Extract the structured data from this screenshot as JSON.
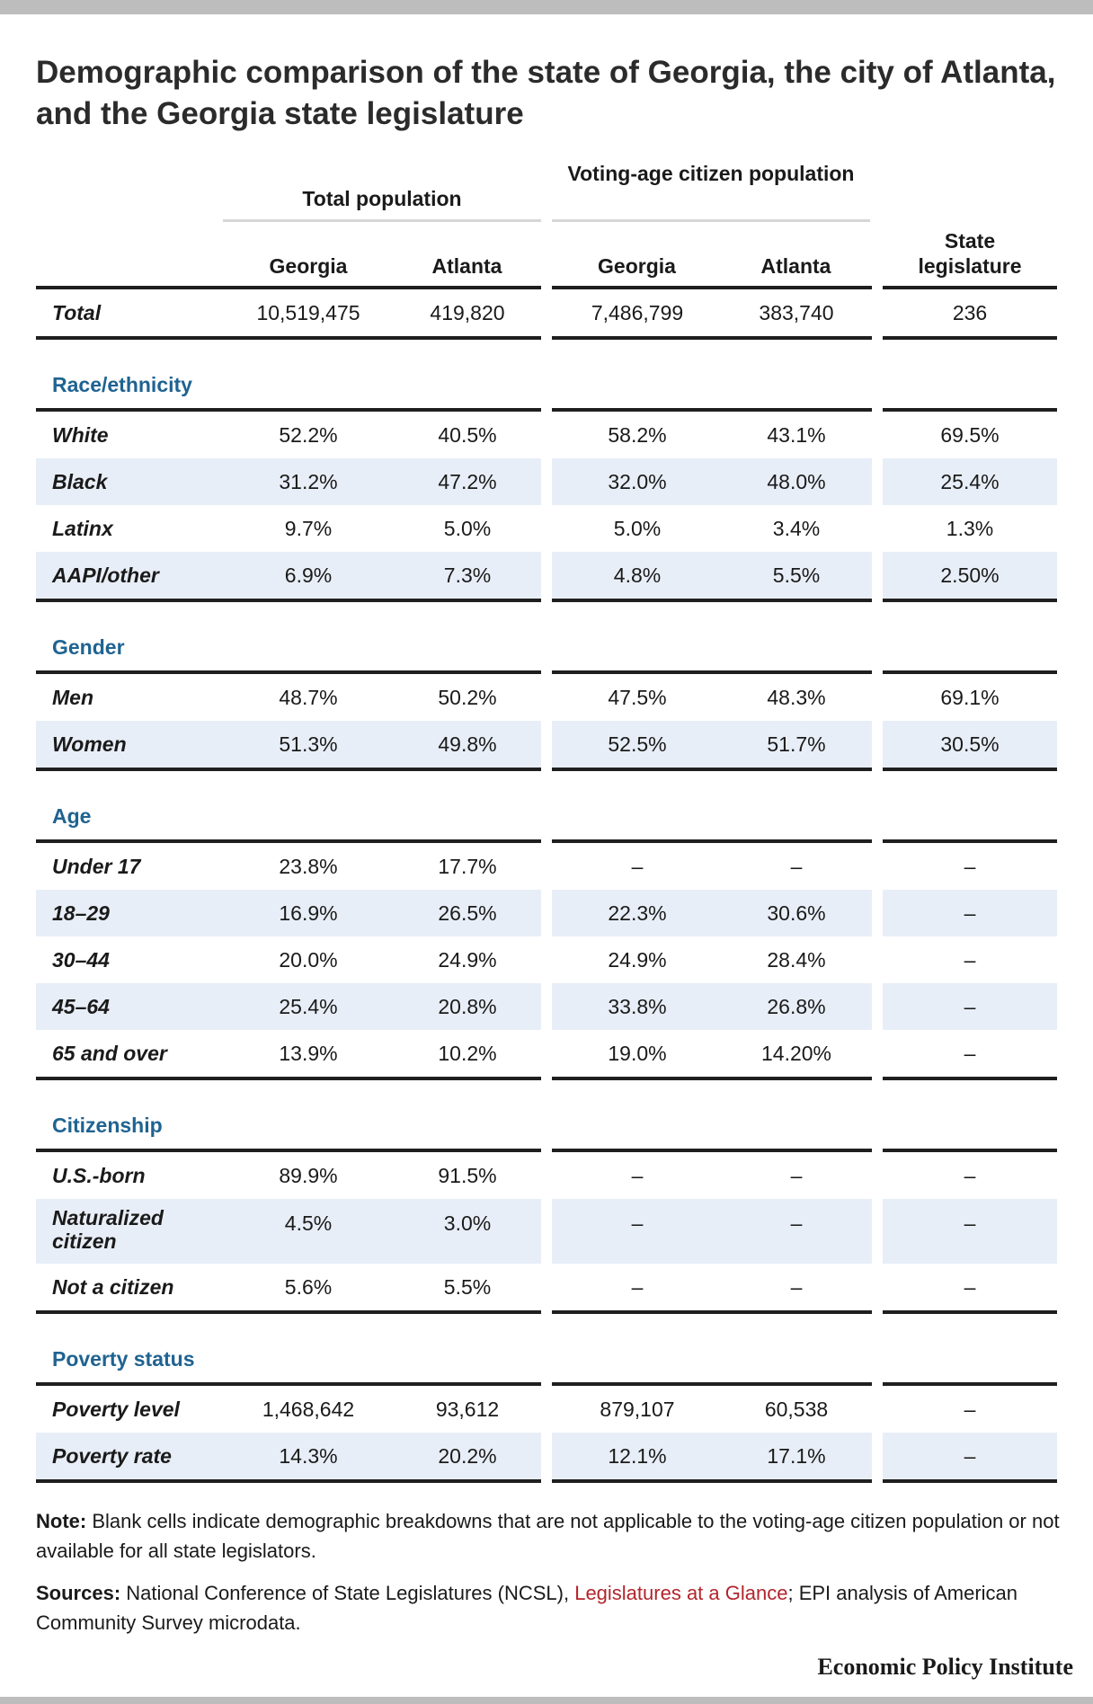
{
  "title": "Demographic comparison of the state of Georgia, the city of Atlanta, and the Georgia state legislature",
  "group_headers": {
    "total_population": "Total population",
    "voting_age": "Voting-age citizen population"
  },
  "column_headers": [
    "Georgia",
    "Atlanta",
    "Georgia",
    "Atlanta",
    "State legislature"
  ],
  "total_row": {
    "label": "Total",
    "values": [
      "10,519,475",
      "419,820",
      "7,486,799",
      "383,740",
      "236"
    ]
  },
  "sections": [
    {
      "title": "Race/ethnicity",
      "rows": [
        {
          "label": "White",
          "values": [
            "52.2%",
            "40.5%",
            "58.2%",
            "43.1%",
            "69.5%"
          ]
        },
        {
          "label": "Black",
          "values": [
            "31.2%",
            "47.2%",
            "32.0%",
            "48.0%",
            "25.4%"
          ]
        },
        {
          "label": "Latinx",
          "values": [
            "9.7%",
            "5.0%",
            "5.0%",
            "3.4%",
            "1.3%"
          ]
        },
        {
          "label": "AAPI/other",
          "values": [
            "6.9%",
            "7.3%",
            "4.8%",
            "5.5%",
            "2.50%"
          ]
        }
      ]
    },
    {
      "title": "Gender",
      "rows": [
        {
          "label": "Men",
          "values": [
            "48.7%",
            "50.2%",
            "47.5%",
            "48.3%",
            "69.1%"
          ]
        },
        {
          "label": "Women",
          "values": [
            "51.3%",
            "49.8%",
            "52.5%",
            "51.7%",
            "30.5%"
          ]
        }
      ]
    },
    {
      "title": "Age",
      "rows": [
        {
          "label": "Under 17",
          "values": [
            "23.8%",
            "17.7%",
            "–",
            "–",
            "–"
          ]
        },
        {
          "label": "18–29",
          "values": [
            "16.9%",
            "26.5%",
            "22.3%",
            "30.6%",
            "–"
          ]
        },
        {
          "label": "30–44",
          "values": [
            "20.0%",
            "24.9%",
            "24.9%",
            "28.4%",
            "–"
          ]
        },
        {
          "label": "45–64",
          "values": [
            "25.4%",
            "20.8%",
            "33.8%",
            "26.8%",
            "–"
          ]
        },
        {
          "label": "65 and over",
          "values": [
            "13.9%",
            "10.2%",
            "19.0%",
            "14.20%",
            "–"
          ]
        }
      ]
    },
    {
      "title": "Citizenship",
      "rows": [
        {
          "label": "U.S.-born",
          "values": [
            "89.9%",
            "91.5%",
            "–",
            "–",
            "–"
          ]
        },
        {
          "label": "Naturalized citizen",
          "values": [
            "4.5%",
            "3.0%",
            "–",
            "–",
            "–"
          ]
        },
        {
          "label": "Not a citizen",
          "values": [
            "5.6%",
            "5.5%",
            "–",
            "–",
            "–"
          ]
        }
      ]
    },
    {
      "title": "Poverty status",
      "rows": [
        {
          "label": "Poverty level",
          "values": [
            "1,468,642",
            "93,612",
            "879,107",
            "60,538",
            "–"
          ]
        },
        {
          "label": "Poverty rate",
          "values": [
            "14.3%",
            "20.2%",
            "12.1%",
            "17.1%",
            "–"
          ]
        }
      ]
    }
  ],
  "note": {
    "label": "Note:",
    "text": " Blank cells indicate demographic breakdowns that are not applicable to the voting-age citizen population or not available for all state legislators."
  },
  "sources": {
    "label": "Sources:",
    "text_before": " National Conference of State Legislatures (NCSL), ",
    "link": "Legislatures at a Glance",
    "text_after": "; EPI analysis of American Community Survey microdata."
  },
  "brand": "Economic Policy Institute",
  "colors": {
    "section_heading": "#1f6391",
    "band": "#e8eef7",
    "link": "#b3242c",
    "rule": "#1f1f1f"
  }
}
